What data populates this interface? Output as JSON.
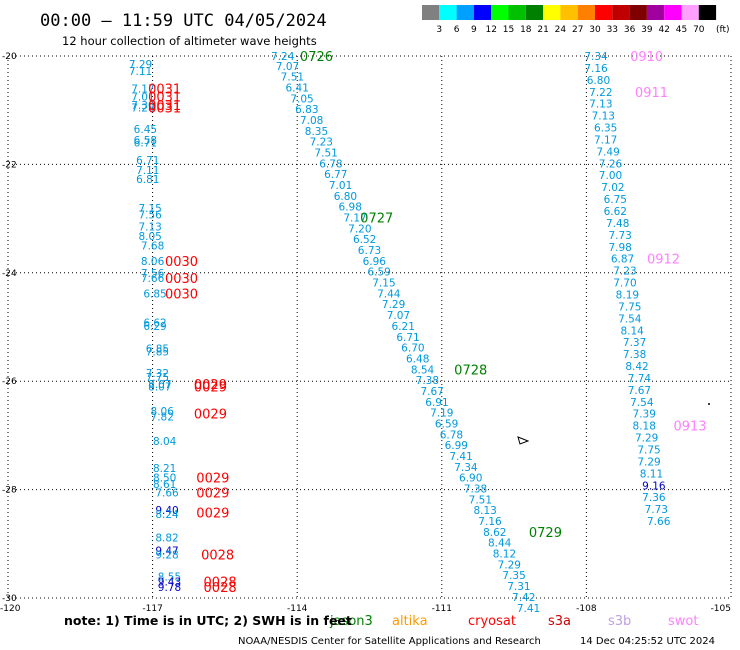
{
  "header": {
    "title": "00:00 – 11:59 UTC 04/05/2024",
    "subtitle": "12 hour collection of altimeter wave heights"
  },
  "color_scale": {
    "unit": "(ft)",
    "labels": [
      "3",
      "6",
      "9",
      "12",
      "15",
      "18",
      "21",
      "24",
      "27",
      "30",
      "33",
      "36",
      "39",
      "42",
      "45",
      "70"
    ],
    "colors": [
      "#808080",
      "#00ffff",
      "#00a0ff",
      "#0000ff",
      "#00ff00",
      "#00c000",
      "#008000",
      "#ffff00",
      "#ffc000",
      "#ff8000",
      "#ff0000",
      "#c00000",
      "#800000",
      "#a000a0",
      "#ff00ff",
      "#ffa0ff",
      "#000000"
    ]
  },
  "footer": {
    "note": "note:  1) Time is in UTC;  2) SWH is in feet",
    "credit": "NOAA/NESDIS Center for Satellite Applications and Research",
    "timestamp": "14 Dec 04:25:52 UTC 2024"
  },
  "legend": [
    {
      "label": "jason3",
      "color": "#008000"
    },
    {
      "label": "altika",
      "color": "#ff9900"
    },
    {
      "label": "cryosat",
      "color": "#ff0000"
    },
    {
      "label": "s3a",
      "color": "#cc0000"
    },
    {
      "label": "s3b",
      "color": "#c0a0e0"
    },
    {
      "label": "swot",
      "color": "#ff80ff"
    }
  ],
  "chart_data": {
    "type": "scatter",
    "xlabel": "",
    "ylabel": "",
    "xlim": [
      -120,
      -105
    ],
    "ylim": [
      -30,
      -20
    ],
    "xticks": [
      -120,
      -117,
      -114,
      -111,
      -108,
      -105
    ],
    "yticks": [
      -20,
      -22,
      -24,
      -26,
      -28,
      -30
    ],
    "xtick_labels": [
      "-120",
      "-117",
      "-114",
      "-111",
      "-108",
      "-105"
    ],
    "ytick_labels": [
      "-20",
      "-22",
      "-24",
      "-26",
      "-28",
      "-30"
    ],
    "grid": true,
    "colors": {
      "swh": "#0099dd",
      "swh_high": "#0000cc",
      "cryosat": "#ff0000",
      "jason3": "#008000",
      "swot": "#ff80ff"
    },
    "tracks": [
      {
        "satellite": "cryosat",
        "points": [
          {
            "lon": -117.25,
            "lat": -20.15,
            "v": "7.29"
          },
          {
            "lon": -117.25,
            "lat": -20.28,
            "v": "7.11"
          },
          {
            "lon": -117.2,
            "lat": -20.6,
            "v": "7.17"
          },
          {
            "lon": -117.2,
            "lat": -20.75,
            "v": "7.01"
          },
          {
            "lon": -117.2,
            "lat": -20.9,
            "v": "7.30"
          },
          {
            "lon": -117.2,
            "lat": -20.95,
            "v": "7.28"
          },
          {
            "lon": -117.15,
            "lat": -21.35,
            "v": "6.45"
          },
          {
            "lon": -117.15,
            "lat": -21.55,
            "v": "6.58"
          },
          {
            "lon": -117.15,
            "lat": -21.6,
            "v": "6.71"
          },
          {
            "lon": -117.1,
            "lat": -21.92,
            "v": "6.71"
          },
          {
            "lon": -117.1,
            "lat": -22.1,
            "v": "7.11"
          },
          {
            "lon": -117.1,
            "lat": -22.27,
            "v": "6.81"
          },
          {
            "lon": -117.05,
            "lat": -22.8,
            "v": "7.15"
          },
          {
            "lon": -117.05,
            "lat": -22.92,
            "v": "7.56"
          },
          {
            "lon": -117.05,
            "lat": -23.15,
            "v": "7.13"
          },
          {
            "lon": -117.05,
            "lat": -23.32,
            "v": "8.05"
          },
          {
            "lon": -117.0,
            "lat": -23.5,
            "v": "7.68"
          },
          {
            "lon": -117.0,
            "lat": -23.78,
            "v": "8.06"
          },
          {
            "lon": -117.0,
            "lat": -24.0,
            "v": "7.56"
          },
          {
            "lon": -117.0,
            "lat": -24.1,
            "v": "7.66"
          },
          {
            "lon": -116.95,
            "lat": -24.38,
            "v": "6.85"
          },
          {
            "lon": -116.95,
            "lat": -24.92,
            "v": "6.62"
          },
          {
            "lon": -116.95,
            "lat": -24.98,
            "v": "6.29"
          },
          {
            "lon": -116.9,
            "lat": -25.4,
            "v": "6.85"
          },
          {
            "lon": -116.9,
            "lat": -25.45,
            "v": "7.85"
          },
          {
            "lon": -116.9,
            "lat": -25.85,
            "v": "7.32"
          },
          {
            "lon": -116.9,
            "lat": -25.92,
            "v": "7.75"
          },
          {
            "lon": -116.85,
            "lat": -26.05,
            "v": "8.07"
          },
          {
            "lon": -116.85,
            "lat": -26.1,
            "v": "8.07"
          },
          {
            "lon": -116.8,
            "lat": -26.55,
            "v": "8.06"
          },
          {
            "lon": -116.8,
            "lat": -26.65,
            "v": "7.82"
          },
          {
            "lon": -116.75,
            "lat": -27.1,
            "v": "8.04"
          },
          {
            "lon": -116.75,
            "lat": -27.6,
            "v": "8.21"
          },
          {
            "lon": -116.75,
            "lat": -27.78,
            "v": "8.50"
          },
          {
            "lon": -116.75,
            "lat": -27.9,
            "v": "8.61"
          },
          {
            "lon": -116.7,
            "lat": -28.05,
            "v": "7.66"
          },
          {
            "lon": -116.7,
            "lat": -28.38,
            "v": "9.40",
            "high": true
          },
          {
            "lon": -116.7,
            "lat": -28.45,
            "v": "8.24"
          },
          {
            "lon": -116.7,
            "lat": -28.88,
            "v": "8.82"
          },
          {
            "lon": -116.7,
            "lat": -29.12,
            "v": "9.47",
            "high": true
          },
          {
            "lon": -116.7,
            "lat": -29.2,
            "v": "9.28"
          },
          {
            "lon": -116.65,
            "lat": -29.6,
            "v": "8.55"
          },
          {
            "lon": -116.65,
            "lat": -29.7,
            "v": "9.43",
            "high": true
          },
          {
            "lon": -116.65,
            "lat": -29.8,
            "v": "9.78",
            "high": true
          }
        ],
        "time_labels": [
          {
            "lon": -116.75,
            "lat": -20.6,
            "t": "0031"
          },
          {
            "lon": -116.75,
            "lat": -20.75,
            "t": "0031"
          },
          {
            "lon": -116.75,
            "lat": -20.9,
            "t": "0031"
          },
          {
            "lon": -116.75,
            "lat": -20.95,
            "t": "0031"
          },
          {
            "lon": -116.4,
            "lat": -23.78,
            "t": "0030"
          },
          {
            "lon": -116.4,
            "lat": -24.1,
            "t": "0030"
          },
          {
            "lon": -116.4,
            "lat": -24.38,
            "t": "0030"
          },
          {
            "lon": -115.8,
            "lat": -26.05,
            "t": "0029"
          },
          {
            "lon": -115.8,
            "lat": -26.1,
            "t": "0029"
          },
          {
            "lon": -115.8,
            "lat": -26.6,
            "t": "0029"
          },
          {
            "lon": -115.75,
            "lat": -27.78,
            "t": "0029"
          },
          {
            "lon": -115.75,
            "lat": -28.05,
            "t": "0029"
          },
          {
            "lon": -115.75,
            "lat": -28.42,
            "t": "0029"
          },
          {
            "lon": -115.65,
            "lat": -29.2,
            "t": "0028"
          },
          {
            "lon": -115.6,
            "lat": -29.7,
            "t": "0028"
          },
          {
            "lon": -115.6,
            "lat": -29.8,
            "t": "0028"
          }
        ]
      },
      {
        "satellite": "jason3",
        "points": [
          {
            "lon": -114.3,
            "lat": -20.0,
            "v": "7.24"
          },
          {
            "lon": -114.2,
            "lat": -20.18,
            "v": "7.07"
          },
          {
            "lon": -114.1,
            "lat": -20.38,
            "v": "7.51"
          },
          {
            "lon": -114.0,
            "lat": -20.58,
            "v": "6.41"
          },
          {
            "lon": -113.9,
            "lat": -20.78,
            "v": "7.05"
          },
          {
            "lon": -113.8,
            "lat": -20.98,
            "v": "6.83"
          },
          {
            "lon": -113.7,
            "lat": -21.18,
            "v": "7.08"
          },
          {
            "lon": -113.6,
            "lat": -21.38,
            "v": "8.35"
          },
          {
            "lon": -113.5,
            "lat": -21.58,
            "v": "7.23"
          },
          {
            "lon": -113.4,
            "lat": -21.78,
            "v": "7.51"
          },
          {
            "lon": -113.3,
            "lat": -21.98,
            "v": "6.78"
          },
          {
            "lon": -113.2,
            "lat": -22.18,
            "v": "6.77"
          },
          {
            "lon": -113.1,
            "lat": -22.38,
            "v": "7.01"
          },
          {
            "lon": -113.0,
            "lat": -22.58,
            "v": "6.80"
          },
          {
            "lon": -112.9,
            "lat": -22.78,
            "v": "6.98"
          },
          {
            "lon": -112.8,
            "lat": -22.98,
            "v": "7.17"
          },
          {
            "lon": -112.7,
            "lat": -23.18,
            "v": "7.20"
          },
          {
            "lon": -112.6,
            "lat": -23.38,
            "v": "6.52"
          },
          {
            "lon": -112.5,
            "lat": -23.58,
            "v": "6.73"
          },
          {
            "lon": -112.4,
            "lat": -23.78,
            "v": "6.96"
          },
          {
            "lon": -112.3,
            "lat": -23.98,
            "v": "6.59"
          },
          {
            "lon": -112.2,
            "lat": -24.18,
            "v": "7.15"
          },
          {
            "lon": -112.1,
            "lat": -24.38,
            "v": "7.44"
          },
          {
            "lon": -112.0,
            "lat": -24.58,
            "v": "7.29"
          },
          {
            "lon": -111.9,
            "lat": -24.78,
            "v": "7.07"
          },
          {
            "lon": -111.8,
            "lat": -24.98,
            "v": "6.21"
          },
          {
            "lon": -111.7,
            "lat": -25.18,
            "v": "6.71"
          },
          {
            "lon": -111.6,
            "lat": -25.38,
            "v": "6.70"
          },
          {
            "lon": -111.5,
            "lat": -25.58,
            "v": "6.48"
          },
          {
            "lon": -111.4,
            "lat": -25.78,
            "v": "8.54"
          },
          {
            "lon": -111.3,
            "lat": -25.98,
            "v": "7.38"
          },
          {
            "lon": -111.2,
            "lat": -26.18,
            "v": "7.67"
          },
          {
            "lon": -111.1,
            "lat": -26.38,
            "v": "6.91"
          },
          {
            "lon": -111.0,
            "lat": -26.58,
            "v": "7.19"
          },
          {
            "lon": -110.9,
            "lat": -26.78,
            "v": "6.59"
          },
          {
            "lon": -110.8,
            "lat": -26.98,
            "v": "6.78"
          },
          {
            "lon": -110.7,
            "lat": -27.18,
            "v": "6.99"
          },
          {
            "lon": -110.6,
            "lat": -27.38,
            "v": "7.41"
          },
          {
            "lon": -110.5,
            "lat": -27.58,
            "v": "7.34"
          },
          {
            "lon": -110.4,
            "lat": -27.78,
            "v": "6.90"
          },
          {
            "lon": -110.3,
            "lat": -27.98,
            "v": "7.38"
          },
          {
            "lon": -110.2,
            "lat": -28.18,
            "v": "7.51"
          },
          {
            "lon": -110.1,
            "lat": -28.38,
            "v": "8.13"
          },
          {
            "lon": -110.0,
            "lat": -28.58,
            "v": "7.16"
          },
          {
            "lon": -109.9,
            "lat": -28.78,
            "v": "8.62"
          },
          {
            "lon": -109.8,
            "lat": -28.98,
            "v": "8.44"
          },
          {
            "lon": -109.7,
            "lat": -29.18,
            "v": "8.12"
          },
          {
            "lon": -109.6,
            "lat": -29.38,
            "v": "7.29"
          },
          {
            "lon": -109.5,
            "lat": -29.58,
            "v": "7.35"
          },
          {
            "lon": -109.4,
            "lat": -29.78,
            "v": "7.31"
          },
          {
            "lon": -109.3,
            "lat": -29.98,
            "v": "7.42"
          },
          {
            "lon": -109.2,
            "lat": -30.18,
            "v": "7.41"
          }
        ],
        "time_labels": [
          {
            "lon": -113.6,
            "lat": -20.0,
            "t": "0726"
          },
          {
            "lon": -112.35,
            "lat": -22.98,
            "t": "0727"
          },
          {
            "lon": -110.4,
            "lat": -25.78,
            "t": "0728"
          },
          {
            "lon": -108.85,
            "lat": -28.78,
            "t": "0729"
          }
        ]
      },
      {
        "satellite": "swot",
        "points": [
          {
            "lon": -107.8,
            "lat": -20.0,
            "v": "7.34"
          },
          {
            "lon": -107.8,
            "lat": -20.22,
            "v": "7.16"
          },
          {
            "lon": -107.75,
            "lat": -20.44,
            "v": "6.80"
          },
          {
            "lon": -107.7,
            "lat": -20.66,
            "v": "7.22"
          },
          {
            "lon": -107.7,
            "lat": -20.88,
            "v": "7.13"
          },
          {
            "lon": -107.65,
            "lat": -21.1,
            "v": "7.13"
          },
          {
            "lon": -107.6,
            "lat": -21.32,
            "v": "6.35"
          },
          {
            "lon": -107.6,
            "lat": -21.54,
            "v": "7.17"
          },
          {
            "lon": -107.55,
            "lat": -21.76,
            "v": "7.49"
          },
          {
            "lon": -107.5,
            "lat": -21.98,
            "v": "7.26"
          },
          {
            "lon": -107.5,
            "lat": -22.2,
            "v": "7.00"
          },
          {
            "lon": -107.45,
            "lat": -22.42,
            "v": "7.02"
          },
          {
            "lon": -107.4,
            "lat": -22.64,
            "v": "6.75"
          },
          {
            "lon": -107.4,
            "lat": -22.86,
            "v": "6.62"
          },
          {
            "lon": -107.35,
            "lat": -23.08,
            "v": "7.48"
          },
          {
            "lon": -107.3,
            "lat": -23.3,
            "v": "7.73"
          },
          {
            "lon": -107.3,
            "lat": -23.52,
            "v": "7.98"
          },
          {
            "lon": -107.25,
            "lat": -23.74,
            "v": "6.87"
          },
          {
            "lon": -107.2,
            "lat": -23.96,
            "v": "7.23"
          },
          {
            "lon": -107.2,
            "lat": -24.18,
            "v": "7.70"
          },
          {
            "lon": -107.15,
            "lat": -24.4,
            "v": "8.19"
          },
          {
            "lon": -107.1,
            "lat": -24.62,
            "v": "7.75"
          },
          {
            "lon": -107.1,
            "lat": -24.84,
            "v": "7.54"
          },
          {
            "lon": -107.05,
            "lat": -25.06,
            "v": "8.14"
          },
          {
            "lon": -107.0,
            "lat": -25.28,
            "v": "7.37"
          },
          {
            "lon": -107.0,
            "lat": -25.5,
            "v": "7.38"
          },
          {
            "lon": -106.95,
            "lat": -25.72,
            "v": "8.42"
          },
          {
            "lon": -106.9,
            "lat": -25.94,
            "v": "7.74"
          },
          {
            "lon": -106.9,
            "lat": -26.16,
            "v": "7.67"
          },
          {
            "lon": -106.85,
            "lat": -26.38,
            "v": "7.54"
          },
          {
            "lon": -106.8,
            "lat": -26.6,
            "v": "7.39"
          },
          {
            "lon": -106.8,
            "lat": -26.82,
            "v": "8.18"
          },
          {
            "lon": -106.75,
            "lat": -27.04,
            "v": "7.29"
          },
          {
            "lon": -106.7,
            "lat": -27.26,
            "v": "7.75"
          },
          {
            "lon": -106.7,
            "lat": -27.48,
            "v": "7.29"
          },
          {
            "lon": -106.65,
            "lat": -27.7,
            "v": "8.11"
          },
          {
            "lon": -106.6,
            "lat": -27.92,
            "v": "9.16",
            "high": true
          },
          {
            "lon": -106.6,
            "lat": -28.14,
            "v": "7.36"
          },
          {
            "lon": -106.55,
            "lat": -28.36,
            "v": "7.73"
          },
          {
            "lon": -106.5,
            "lat": -28.58,
            "v": "7.66"
          }
        ],
        "time_labels": [
          {
            "lon": -106.75,
            "lat": -20.0,
            "t": "0910"
          },
          {
            "lon": -106.65,
            "lat": -20.66,
            "t": "0911"
          },
          {
            "lon": -106.4,
            "lat": -23.74,
            "t": "0912"
          },
          {
            "lon": -105.85,
            "lat": -26.82,
            "t": "0913"
          }
        ]
      }
    ]
  }
}
